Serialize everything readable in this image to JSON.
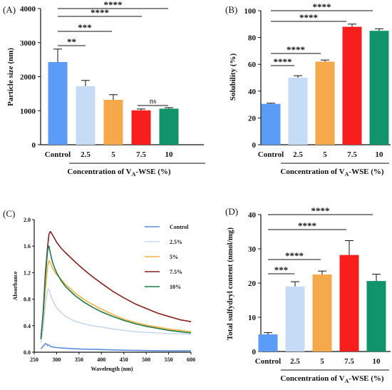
{
  "chart_data": [
    {
      "panel": "(A)",
      "type": "bar",
      "categories": [
        "Control",
        "2.5",
        "5",
        "7.5",
        "10"
      ],
      "values": [
        2430,
        1720,
        1320,
        1010,
        1060
      ],
      "errors": [
        380,
        170,
        150,
        40,
        30
      ],
      "colors": [
        "#5a9cf8",
        "#c6dcf6",
        "#f6a94b",
        "#f91e1e",
        "#12946a"
      ],
      "ylabel": "Particle size (nm)",
      "xlabel_main": "Concentration of V",
      "xlabel_sub": "A",
      "xlabel_tail": "-WSE (%)",
      "ylim": [
        0,
        4000
      ],
      "yticks": [
        "0",
        "1000",
        "2000",
        "3000",
        "4000"
      ],
      "significance": [
        {
          "from": 0,
          "to": 1,
          "label": "**"
        },
        {
          "from": 0,
          "to": 2,
          "label": "***"
        },
        {
          "from": 0,
          "to": 3,
          "label": "****"
        },
        {
          "from": 0,
          "to": 4,
          "label": "****"
        },
        {
          "from": 3,
          "to": 4,
          "label": "ns"
        }
      ]
    },
    {
      "panel": "(B)",
      "type": "bar",
      "categories": [
        "Control",
        "2.5",
        "5",
        "7.5",
        "10"
      ],
      "values": [
        30.5,
        50,
        62,
        88,
        85
      ],
      "errors": [
        0.5,
        1.5,
        1.2,
        2,
        1.5
      ],
      "colors": [
        "#5a9cf8",
        "#c6dcf6",
        "#f6a94b",
        "#f91e1e",
        "#12946a"
      ],
      "ylabel": "Solubility (%)",
      "xlabel_main": "Concentration of V",
      "xlabel_sub": "A",
      "xlabel_tail": "-WSE (%)",
      "ylim": [
        0,
        100
      ],
      "yticks": [
        "0",
        "20",
        "40",
        "60",
        "80",
        "100"
      ],
      "significance": [
        {
          "from": 0,
          "to": 1,
          "label": "****"
        },
        {
          "from": 0,
          "to": 2,
          "label": "****"
        },
        {
          "from": 0,
          "to": 3,
          "label": "****"
        },
        {
          "from": 0,
          "to": 4,
          "label": "****"
        }
      ]
    },
    {
      "panel": "(C)",
      "type": "line",
      "xlabel": "Wavelength (nm)",
      "ylabel": "Absorbance",
      "xlim": [
        250,
        600
      ],
      "ylim": [
        0,
        2.0
      ],
      "xticks": [
        "250",
        "300",
        "350",
        "400",
        "450",
        "500",
        "550",
        "600"
      ],
      "yticks": [
        "0.0",
        "0.4",
        "0.8",
        "1.2",
        "1.6",
        "2.0"
      ],
      "legend_position": "top-right",
      "series": [
        {
          "name": "Control",
          "color": "#5b8ce0",
          "x": [
            265,
            270,
            275,
            278,
            280,
            283,
            286,
            290,
            300,
            320,
            350,
            400,
            450,
            500,
            550,
            600
          ],
          "y": [
            0.05,
            0.09,
            0.13,
            0.12,
            0.1,
            0.11,
            0.09,
            0.08,
            0.07,
            0.06,
            0.05,
            0.04,
            0.03,
            0.025,
            0.02,
            0.02
          ]
        },
        {
          "name": "2.5%",
          "color": "#c8d8f2",
          "x": [
            265,
            270,
            275,
            280,
            283,
            286,
            290,
            295,
            300,
            310,
            320,
            340,
            360,
            380,
            400,
            425,
            450,
            475,
            500,
            525,
            550,
            575,
            600
          ],
          "y": [
            0.15,
            0.35,
            0.72,
            0.95,
            0.95,
            0.88,
            0.8,
            0.73,
            0.67,
            0.6,
            0.54,
            0.47,
            0.43,
            0.4,
            0.38,
            0.35,
            0.33,
            0.31,
            0.3,
            0.29,
            0.28,
            0.28,
            0.27
          ]
        },
        {
          "name": "5%",
          "color": "#f4b340",
          "x": [
            265,
            270,
            275,
            280,
            283,
            286,
            290,
            295,
            300,
            310,
            320,
            340,
            360,
            380,
            400,
            425,
            450,
            475,
            500,
            525,
            550,
            575,
            600
          ],
          "y": [
            0.2,
            0.55,
            0.95,
            1.3,
            1.38,
            1.35,
            1.28,
            1.22,
            1.17,
            1.1,
            1.02,
            0.9,
            0.8,
            0.72,
            0.65,
            0.57,
            0.5,
            0.45,
            0.41,
            0.38,
            0.35,
            0.33,
            0.31
          ]
        },
        {
          "name": "7.5%",
          "color": "#8b1f1a",
          "x": [
            265,
            270,
            275,
            280,
            283,
            286,
            288,
            290,
            295,
            300,
            310,
            320,
            340,
            360,
            380,
            400,
            425,
            450,
            475,
            500,
            525,
            550,
            575,
            600
          ],
          "y": [
            0.2,
            0.6,
            1.2,
            1.6,
            1.78,
            1.82,
            1.8,
            1.78,
            1.72,
            1.66,
            1.57,
            1.5,
            1.37,
            1.25,
            1.14,
            1.04,
            0.92,
            0.82,
            0.73,
            0.66,
            0.59,
            0.54,
            0.49,
            0.46
          ]
        },
        {
          "name": "10%",
          "color": "#1e7a4c",
          "x": [
            265,
            270,
            275,
            280,
            283,
            286,
            290,
            295,
            300,
            310,
            320,
            340,
            360,
            380,
            400,
            425,
            450,
            475,
            500,
            525,
            550,
            575,
            600
          ],
          "y": [
            0.2,
            0.6,
            1.15,
            1.55,
            1.6,
            1.5,
            1.38,
            1.28,
            1.2,
            1.08,
            0.99,
            0.86,
            0.76,
            0.68,
            0.61,
            0.54,
            0.48,
            0.43,
            0.39,
            0.36,
            0.33,
            0.31,
            0.29
          ]
        }
      ]
    },
    {
      "panel": "(D)",
      "type": "bar",
      "categories": [
        "Control",
        "2.5",
        "5",
        "7.5",
        "10"
      ],
      "values": [
        5,
        19,
        22.5,
        28.2,
        20.6
      ],
      "errors": [
        0.5,
        1.4,
        1,
        4.2,
        2
      ],
      "colors": [
        "#5a9cf8",
        "#c6dcf6",
        "#f6a94b",
        "#f91e1e",
        "#12946a"
      ],
      "ylabel": "Total sulfydryl content (nmol/mg)",
      "xlabel_main": "Concentration of V",
      "xlabel_sub": "A",
      "xlabel_tail": "-WSE (%)",
      "ylim": [
        0,
        40
      ],
      "yticks": [
        "0",
        "10",
        "20",
        "30",
        "40"
      ],
      "significance": [
        {
          "from": 0,
          "to": 1,
          "label": "***"
        },
        {
          "from": 0,
          "to": 2,
          "label": "****"
        },
        {
          "from": 0,
          "to": 3,
          "label": "****"
        },
        {
          "from": 0,
          "to": 4,
          "label": "****"
        }
      ]
    }
  ]
}
